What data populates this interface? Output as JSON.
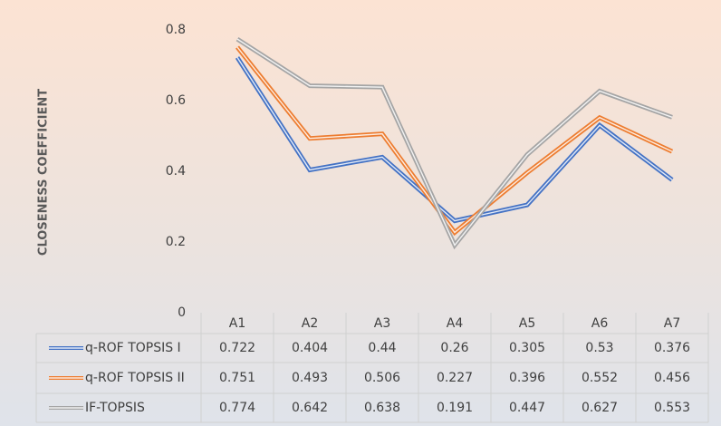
{
  "chart_data": {
    "type": "line",
    "y_label": "CLOSENESS COEFFICIENT",
    "categories": [
      "A1",
      "A2",
      "A3",
      "A4",
      "A5",
      "A6",
      "A7"
    ],
    "series": [
      {
        "name": "q-ROF TOPSIS I",
        "color": "#4472c4",
        "values": [
          0.722,
          0.404,
          0.44,
          0.26,
          0.305,
          0.53,
          0.376
        ]
      },
      {
        "name": "q-ROF TOPSIS II",
        "color": "#ed7d31",
        "values": [
          0.751,
          0.493,
          0.506,
          0.227,
          0.396,
          0.552,
          0.456
        ]
      },
      {
        "name": "IF-TOPSIS",
        "color": "#a5a5a5",
        "values": [
          0.774,
          0.642,
          0.638,
          0.191,
          0.447,
          0.627,
          0.553
        ]
      }
    ],
    "ylim": [
      0,
      0.8
    ],
    "yticks": [
      0,
      0.2,
      0.4,
      0.6,
      0.8
    ],
    "grid": false
  }
}
